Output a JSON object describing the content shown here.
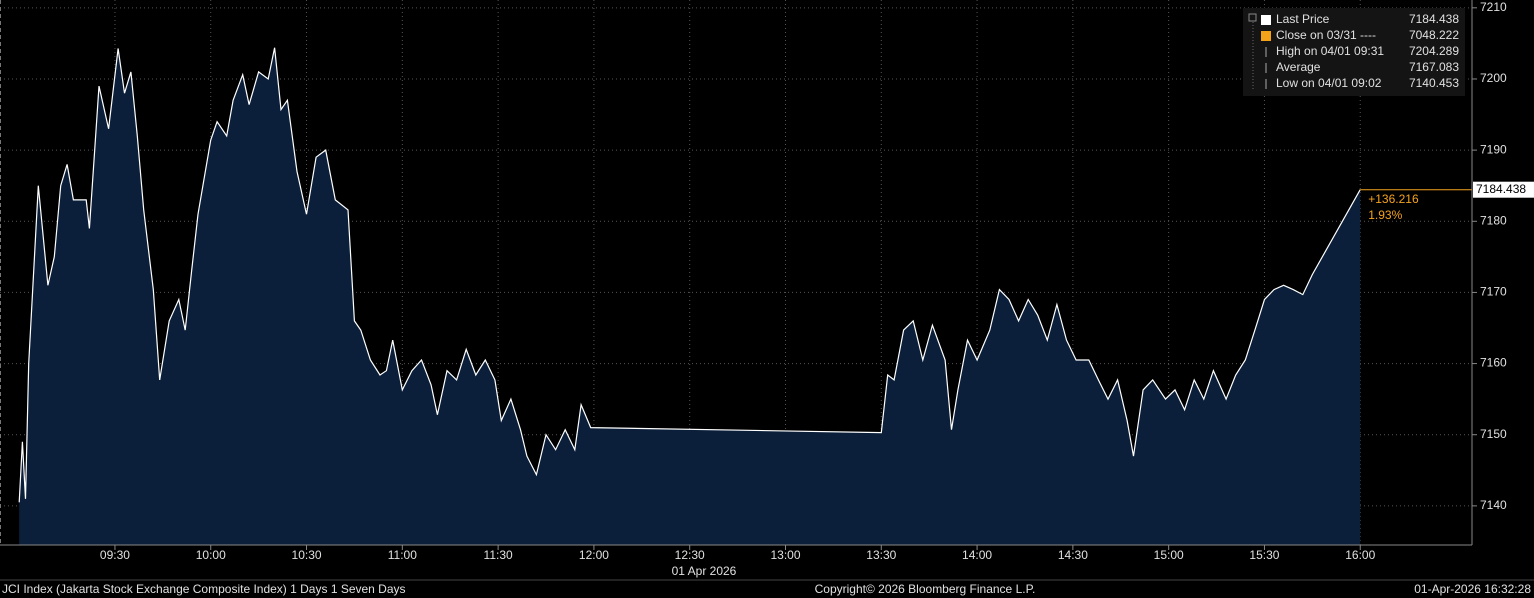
{
  "chart_data": {
    "type": "area",
    "footer_left": "JCI Index (Jakarta Stock Exchange Composite Index) 1 Days 1 Seven Days",
    "footer_center": "Copyright© 2026 Bloomberg Finance L.P.",
    "footer_right": "01-Apr-2026 16:32:28",
    "x_axis_date": "01 Apr 2026",
    "xlim": [
      "08:54",
      "16:35"
    ],
    "xticks": [
      "09:30",
      "10:00",
      "10:30",
      "11:00",
      "11:30",
      "12:00",
      "12:30",
      "13:00",
      "13:30",
      "14:00",
      "14:30",
      "15:00",
      "15:30",
      "16:00"
    ],
    "ylim": [
      7134.5,
      7211.1
    ],
    "yticks": [
      7140,
      7150,
      7160,
      7170,
      7180,
      7190,
      7200,
      7210
    ],
    "grid": true,
    "x": [
      "09:00",
      "09:01",
      "09:02",
      "09:03",
      "09:06",
      "09:09",
      "09:11",
      "09:13",
      "09:15",
      "09:17",
      "09:21",
      "09:22",
      "09:25",
      "09:28",
      "09:31",
      "09:33",
      "09:35",
      "09:37",
      "09:39",
      "09:42",
      "09:44",
      "09:47",
      "09:50",
      "09:52",
      "09:54",
      "09:56",
      "10:00",
      "10:02",
      "10:05",
      "10:07",
      "10:10",
      "10:12",
      "10:15",
      "10:18",
      "10:20",
      "10:22",
      "10:24",
      "10:27",
      "10:30",
      "10:33",
      "10:36",
      "10:39",
      "10:43",
      "10:45",
      "10:47",
      "10:50",
      "10:53",
      "10:55",
      "10:57",
      "11:00",
      "11:03",
      "11:06",
      "11:09",
      "11:11",
      "11:14",
      "11:17",
      "11:20",
      "11:23",
      "11:26",
      "11:29",
      "11:31",
      "11:34",
      "11:37",
      "11:39",
      "11:42",
      "11:45",
      "11:48",
      "11:51",
      "11:54",
      "11:56",
      "11:59",
      "13:30",
      "13:32",
      "13:34",
      "13:37",
      "13:40",
      "13:43",
      "13:46",
      "13:50",
      "13:52",
      "13:54",
      "13:57",
      "14:00",
      "14:04",
      "14:07",
      "14:10",
      "14:13",
      "14:16",
      "14:19",
      "14:22",
      "14:25",
      "14:28",
      "14:31",
      "14:35",
      "14:38",
      "14:41",
      "14:44",
      "14:47",
      "14:49",
      "14:52",
      "14:55",
      "14:59",
      "15:02",
      "15:05",
      "15:08",
      "15:11",
      "15:14",
      "15:18",
      "15:21",
      "15:24",
      "15:27",
      "15:30",
      "15:33",
      "15:36",
      "15:39",
      "15:42",
      "15:45",
      "16:00"
    ],
    "series": [
      {
        "name": "Last Price",
        "color": "#ffffff",
        "fill": "#0b1f3a",
        "values": [
          7140.5,
          7149,
          7141,
          7160,
          7185,
          7171,
          7175,
          7185,
          7188,
          7183,
          7183,
          7179,
          7199,
          7193,
          7204.289,
          7198,
          7201,
          7192,
          7181.6,
          7170.4,
          7157.7,
          7166,
          7169,
          7164.7,
          7173,
          7181,
          7191.4,
          7194,
          7192,
          7197,
          7200.6,
          7196.4,
          7201,
          7200,
          7204.4,
          7195.7,
          7197,
          7187,
          7181,
          7189,
          7190,
          7183,
          7181.6,
          7166,
          7164.7,
          7160.5,
          7158.4,
          7159,
          7163.3,
          7156.3,
          7159,
          7160.5,
          7157,
          7152.8,
          7159,
          7157.7,
          7162,
          7158.4,
          7160.5,
          7157.7,
          7152,
          7155,
          7150.7,
          7147,
          7144.4,
          7150,
          7147.9,
          7150.7,
          7147.9,
          7154.2,
          7151,
          7150.3,
          7158.4,
          7157.7,
          7164.7,
          7166,
          7160.5,
          7165.4,
          7160.5,
          7150.7,
          7156.3,
          7163.3,
          7160.5,
          7164.7,
          7170.4,
          7169,
          7166,
          7169,
          7166.8,
          7163.3,
          7168.3,
          7163.3,
          7160.5,
          7160.5,
          7157.7,
          7155,
          7157.7,
          7152,
          7147,
          7156.3,
          7157.7,
          7155,
          7156.3,
          7153.5,
          7157.7,
          7155,
          7159,
          7155,
          7158.4,
          7160.5,
          7164.7,
          7169,
          7170.4,
          7171,
          7170.4,
          7169.7,
          7172.5,
          7184.438
        ]
      }
    ],
    "legend": [
      {
        "label": "Last Price",
        "value": 7184.438,
        "color": "#ffffff"
      },
      {
        "label": "Close on 03/31 ----",
        "value": 7048.222,
        "color": "#f5a21b"
      },
      {
        "label": "High on 04/01 09:31",
        "value": 7204.289
      },
      {
        "label": "Average",
        "value": 7167.083
      },
      {
        "label": "Low on 04/01 09:02",
        "value": 7140.453
      }
    ],
    "change_label": "+136.216",
    "change_pct_label": "1.93%",
    "annotation_color": "#f5a21b"
  }
}
